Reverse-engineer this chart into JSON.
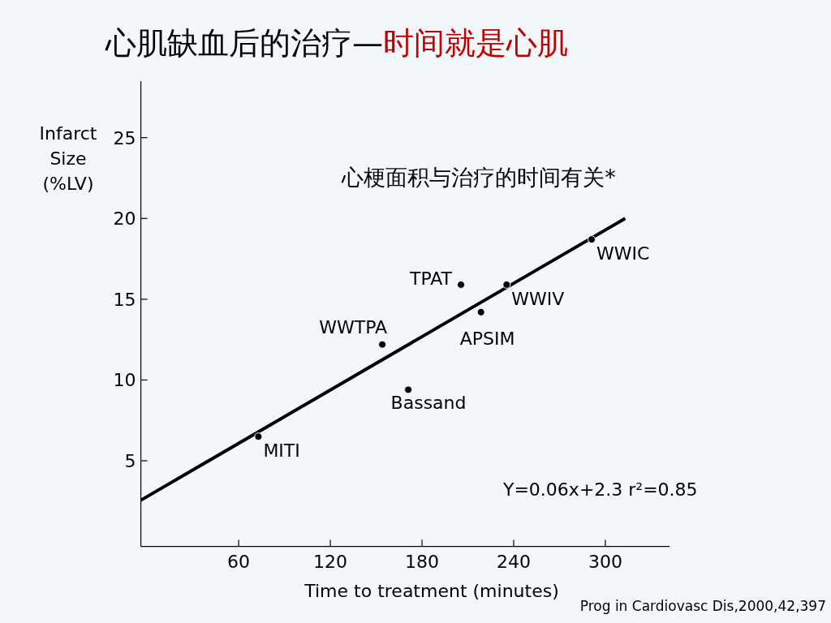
{
  "chart_data": {
    "type": "scatter",
    "title": "心肌缺血后的治疗—时间就是心肌",
    "subtitle": "心梗面积与治疗的时间有关*",
    "xlabel": "Time to treatment (minutes)",
    "ylabel": "Infarct Size (%LV)",
    "xlim": [
      -4,
      342
    ],
    "xticks": [
      60,
      120,
      180,
      240,
      300
    ],
    "ylim": [
      -0.3,
      28.5
    ],
    "yticks": [
      5,
      10,
      15,
      20,
      25
    ],
    "series": [
      {
        "marker": "circle",
        "color": "#000000",
        "x": [
          72.9,
          154,
          171,
          205.5,
          218.6,
          235.4,
          291
        ],
        "values": [
          6.5,
          12.2,
          9.4,
          15.9,
          14.2,
          15.9,
          18.7
        ]
      },
      {
        "type": "line",
        "color": "#000000",
        "x": [
          -4,
          313
        ],
        "values": [
          2.56,
          20.0
        ]
      }
    ],
    "annotations": [
      {
        "text": "MITI",
        "x": 72.9,
        "y": 6.5
      },
      {
        "text": "WWTPA",
        "x": 154,
        "y": 12.2
      },
      {
        "text": "Bassand",
        "x": 171,
        "y": 9.4
      },
      {
        "text": "TPAT",
        "x": 205.5,
        "y": 15.9
      },
      {
        "text": "APSIM",
        "x": 218.6,
        "y": 14.2
      },
      {
        "text": "WWIV",
        "x": 235.4,
        "y": 15.9
      },
      {
        "text": "WWIC",
        "x": 291,
        "y": 18.7
      },
      "Y=0.06x+2.3  r²=0.85",
      "Prog in Cardiovasc Dis,2000,42,397"
    ]
  }
}
